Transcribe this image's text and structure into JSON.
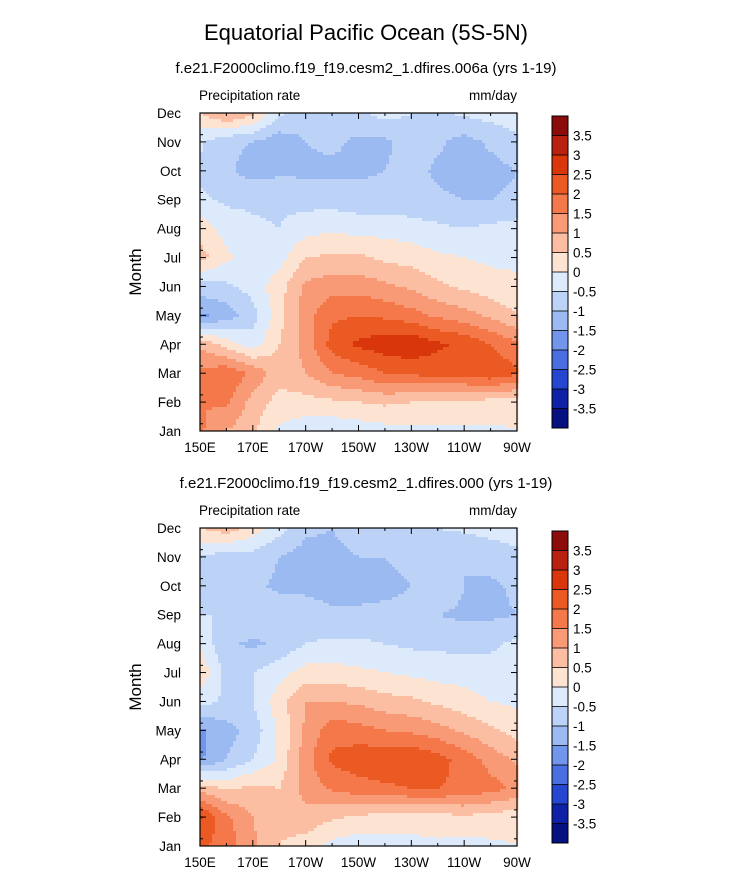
{
  "figure": {
    "title": "Equatorial Pacific Ocean (5S-5N)"
  },
  "colorbar": {
    "levels": [
      "3.5",
      "3",
      "2.5",
      "2",
      "1.5",
      "1",
      "0.5",
      "0",
      "-0.5",
      "-1",
      "-1.5",
      "-2",
      "-2.5",
      "-3",
      "-3.5"
    ],
    "colors": [
      "#8c0b0b",
      "#b8200f",
      "#d9360c",
      "#ec5a24",
      "#f4784a",
      "#f89a75",
      "#fbbea3",
      "#fde3d2",
      "#dceafb",
      "#bcd3f7",
      "#9bbaf2",
      "#7196ec",
      "#4a6fe2",
      "#2546d0",
      "#0f22a7",
      "#071080"
    ]
  },
  "chart_data": [
    {
      "type": "heatmap",
      "title": "f.e21.F2000climo.f19_f19.cesm2_1.dfires.006a (yrs 1-19)",
      "left_label": "Precipitation rate",
      "right_label": "mm/day",
      "xlabel": "",
      "ylabel": "Month",
      "x_ticks": [
        "150E",
        "170E",
        "170W",
        "150W",
        "130W",
        "110W",
        "90W"
      ],
      "x_tick_lon": [
        150,
        170,
        190,
        210,
        230,
        250,
        270
      ],
      "y_ticks": [
        "Jan",
        "Feb",
        "Mar",
        "Apr",
        "May",
        "Jun",
        "Jul",
        "Aug",
        "Sep",
        "Oct",
        "Nov",
        "Dec"
      ],
      "xlim": [
        150,
        270
      ],
      "x": [
        150,
        160,
        170,
        180,
        190,
        200,
        210,
        220,
        230,
        240,
        250,
        260,
        270
      ],
      "y": [
        "Jan",
        "Feb",
        "Mar",
        "Apr",
        "May",
        "Jun",
        "Jul",
        "Aug",
        "Sep",
        "Oct",
        "Nov",
        "Dec"
      ],
      "z": [
        [
          1.6,
          1.0,
          0.6,
          -0.1,
          -0.3,
          -0.4,
          -0.3,
          -0.2,
          -0.1,
          -0.1,
          -0.1,
          -0.1,
          0.0
        ],
        [
          1.5,
          1.6,
          0.8,
          0.3,
          0.3,
          0.4,
          0.5,
          0.6,
          0.5,
          0.4,
          0.4,
          0.3,
          0.2
        ],
        [
          1.6,
          1.9,
          1.4,
          0.7,
          1.0,
          1.5,
          1.7,
          2.0,
          2.1,
          2.2,
          2.2,
          2.4,
          2.1
        ],
        [
          0.9,
          0.3,
          -0.3,
          0.5,
          1.2,
          2.2,
          2.6,
          2.8,
          2.9,
          2.6,
          2.4,
          2.0,
          1.6
        ],
        [
          -1.6,
          -1.3,
          -0.7,
          0.3,
          1.3,
          1.9,
          2.0,
          1.9,
          1.7,
          1.4,
          1.2,
          0.9,
          0.5
        ],
        [
          -0.7,
          -0.6,
          -0.3,
          0.3,
          1.1,
          1.3,
          1.3,
          1.1,
          0.9,
          0.6,
          0.4,
          0.2,
          0.1
        ],
        [
          0.7,
          0.1,
          -0.3,
          -0.2,
          0.5,
          0.6,
          0.6,
          0.4,
          0.3,
          0.1,
          0.0,
          -0.1,
          -0.1
        ],
        [
          0.3,
          -0.2,
          -0.4,
          -0.5,
          -0.2,
          -0.1,
          -0.2,
          -0.2,
          -0.3,
          -0.4,
          -0.5,
          -0.4,
          -0.3
        ],
        [
          -0.4,
          -0.6,
          -0.6,
          -0.6,
          -0.7,
          -0.7,
          -0.8,
          -0.8,
          -0.8,
          -0.9,
          -1.0,
          -1.0,
          -0.9
        ],
        [
          -0.6,
          -0.9,
          -1.2,
          -1.1,
          -1.1,
          -1.1,
          -1.1,
          -1.0,
          -0.8,
          -1.1,
          -1.3,
          -1.2,
          -1.0
        ],
        [
          -0.4,
          -0.9,
          -1.0,
          -1.3,
          -1.0,
          -0.9,
          -1.1,
          -1.1,
          -0.8,
          -0.9,
          -1.2,
          -0.9,
          -0.6
        ],
        [
          0.5,
          1.1,
          0.6,
          -0.4,
          -0.8,
          -0.9,
          -0.6,
          -0.3,
          -0.5,
          -0.6,
          -0.4,
          -0.3,
          -0.2
        ]
      ],
      "zlim": [
        -3.5,
        3.5
      ]
    },
    {
      "type": "heatmap",
      "title": "f.e21.F2000climo.f19_f19.cesm2_1.dfires.000 (yrs 1-19)",
      "left_label": "Precipitation rate",
      "right_label": "mm/day",
      "xlabel": "",
      "ylabel": "Month",
      "x_ticks": [
        "150E",
        "170E",
        "170W",
        "150W",
        "130W",
        "110W",
        "90W"
      ],
      "x_tick_lon": [
        150,
        170,
        190,
        210,
        230,
        250,
        270
      ],
      "y_ticks": [
        "Jan",
        "Feb",
        "Mar",
        "Apr",
        "May",
        "Jun",
        "Jul",
        "Aug",
        "Sep",
        "Oct",
        "Nov",
        "Dec"
      ],
      "xlim": [
        150,
        270
      ],
      "x": [
        150,
        160,
        170,
        180,
        190,
        200,
        210,
        220,
        230,
        240,
        250,
        260,
        270
      ],
      "y": [
        "Jan",
        "Feb",
        "Mar",
        "Apr",
        "May",
        "Jun",
        "Jul",
        "Aug",
        "Sep",
        "Oct",
        "Nov",
        "Dec"
      ],
      "z": [
        [
          2.1,
          1.8,
          1.1,
          0.5,
          0.3,
          -0.2,
          -0.3,
          -0.2,
          -0.2,
          -0.1,
          -0.2,
          -0.1,
          0.0
        ],
        [
          2.6,
          1.6,
          1.0,
          0.6,
          0.8,
          0.6,
          0.4,
          0.3,
          0.3,
          0.3,
          0.4,
          0.3,
          0.2
        ],
        [
          0.8,
          0.4,
          0.6,
          0.5,
          1.2,
          1.6,
          1.8,
          1.9,
          2.0,
          2.0,
          1.9,
          1.7,
          1.4
        ],
        [
          -1.6,
          -1.0,
          -0.5,
          0.1,
          1.3,
          2.1,
          2.3,
          2.4,
          2.5,
          2.2,
          1.8,
          1.3,
          0.9
        ],
        [
          -1.6,
          -1.2,
          -0.8,
          0.1,
          1.1,
          1.8,
          1.7,
          1.5,
          1.4,
          1.2,
          0.9,
          0.6,
          0.3
        ],
        [
          -0.3,
          -0.6,
          -0.5,
          0.3,
          1.0,
          1.0,
          0.9,
          0.7,
          0.6,
          0.4,
          0.2,
          0.0,
          -0.1
        ],
        [
          0.4,
          -0.7,
          -0.5,
          -0.2,
          0.2,
          0.2,
          0.1,
          0.0,
          -0.1,
          -0.2,
          -0.2,
          -0.3,
          -0.2
        ],
        [
          -0.1,
          -0.9,
          -1.1,
          -0.9,
          -0.5,
          -0.4,
          -0.4,
          -0.5,
          -0.6,
          -0.6,
          -0.7,
          -0.6,
          -0.4
        ],
        [
          -0.5,
          -0.5,
          -0.5,
          -0.7,
          -0.8,
          -0.9,
          -0.9,
          -0.9,
          -0.9,
          -1.0,
          -1.1,
          -1.1,
          -1.0
        ],
        [
          -1.0,
          -0.7,
          -0.9,
          -1.1,
          -1.1,
          -1.2,
          -1.2,
          -1.1,
          -1.0,
          -0.5,
          -1.0,
          -1.1,
          -0.9
        ],
        [
          -0.5,
          -0.8,
          -0.7,
          -1.0,
          -1.2,
          -1.1,
          -1.0,
          -1.0,
          -0.9,
          -0.9,
          -1.0,
          -0.8,
          -0.6
        ],
        [
          0.5,
          0.8,
          0.3,
          -0.3,
          -0.9,
          -1.0,
          -0.8,
          -0.6,
          -0.5,
          -0.5,
          -0.4,
          -0.3,
          -0.3
        ]
      ],
      "zlim": [
        -3.5,
        3.5
      ]
    }
  ]
}
